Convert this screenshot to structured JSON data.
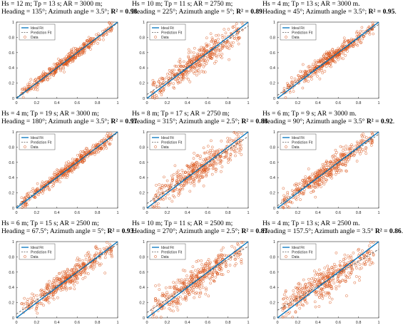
{
  "legend": {
    "ideal": "Ideal Fit",
    "prediction": "Prediction Fit",
    "data": "Data"
  },
  "colors": {
    "ideal": "#0072bd",
    "prediction": "#5a5a5a",
    "data": "#d95319"
  },
  "axis_ticks": {
    "x": [
      "0",
      "0.2",
      "0.4",
      "0.6",
      "0.8",
      "1"
    ],
    "y": [
      "0",
      "0.2",
      "0.4",
      "0.6",
      "0.8",
      "1"
    ]
  },
  "panels": [
    {
      "line1": "Hs = 12 m; Tp = 13 s; AR = 3000 m;",
      "line2": "Heading = 135°; Azimuth angle = 3.5°; ",
      "r2": "R² = 0.98",
      "end": "."
    },
    {
      "line1": "Hs = 10 m; Tp = 11 s; AR = 2750 m;",
      "line2": "Heading = 225°; Azimuth angle = 5°; ",
      "r2": "R² = 0.89",
      "end": "."
    },
    {
      "line1": "Hs = 4 m; Tp = 13 s; AR = 3000 m.",
      "line2": "Heading = 45°; Azimuth angle = 3.5°; ",
      "r2": "R² = 0.95",
      "end": "."
    },
    {
      "line1": "Hs = 4 m; Tp = 19 s; AR = 3000 m;",
      "line2": "Heading = 180°; Azimuth angle = 3.5°; ",
      "r2": "R² = 0.97",
      "end": "."
    },
    {
      "line1": "Hs = 8 m; Tp = 17 s; AR = 2750 m;",
      "line2": "Heading = 315°; Azimuth angle = 2.5°; ",
      "r2": "R² = 0.88",
      "end": "."
    },
    {
      "line1": "Hs = 6 m; Tp = 9 s; AR = 3000 m.",
      "line2": "Heading = 90°; Azimuth angle = 3.5° ",
      "r2": "R² = 0.92",
      "end": "."
    },
    {
      "line1": "Hs = 6 m; Tp = 15 s; AR = 2500 m;",
      "line2": "Heading = 67.5°; Azimuth angle = 5°; ",
      "r2": "R² = 0.93",
      "end": "."
    },
    {
      "line1": "Hs = 10 m; Tp = 11 s; AR = 2500 m;",
      "line2": "Heading = 270°; Azimuth angle = 2.5°; ",
      "r2": "R² = 0.87",
      "end": "."
    },
    {
      "line1": "Hs = 4 m; Tp = 13 s; AR = 2500 m.",
      "line2": "Heading = 157.5°; Azimuth angle = 3.5° ",
      "r2": "R² = 0.86",
      "end": "."
    }
  ],
  "chart_data": [
    {
      "type": "scatter",
      "xlim": [
        0,
        1
      ],
      "ylim": [
        0,
        1
      ],
      "grid": false,
      "legend_position": "top-left",
      "r2": 0.98,
      "prediction_fit": {
        "slope": 0.98,
        "intercept": 0.01
      },
      "ideal_fit": {
        "slope": 1,
        "intercept": 0
      }
    },
    {
      "type": "scatter",
      "xlim": [
        0,
        1
      ],
      "ylim": [
        0,
        1
      ],
      "grid": false,
      "legend_position": "top-left",
      "r2": 0.89,
      "prediction_fit": {
        "slope": 0.9,
        "intercept": 0.05
      },
      "ideal_fit": {
        "slope": 1,
        "intercept": 0
      }
    },
    {
      "type": "scatter",
      "xlim": [
        0,
        1
      ],
      "ylim": [
        0,
        1
      ],
      "grid": false,
      "legend_position": "top-left",
      "r2": 0.95,
      "prediction_fit": {
        "slope": 0.93,
        "intercept": 0.04
      },
      "ideal_fit": {
        "slope": 1,
        "intercept": 0
      }
    },
    {
      "type": "scatter",
      "xlim": [
        0,
        1
      ],
      "ylim": [
        0,
        1
      ],
      "grid": false,
      "legend_position": "top-left",
      "r2": 0.97,
      "prediction_fit": {
        "slope": 0.97,
        "intercept": 0.02
      },
      "ideal_fit": {
        "slope": 1,
        "intercept": 0
      }
    },
    {
      "type": "scatter",
      "xlim": [
        0,
        1
      ],
      "ylim": [
        0,
        1
      ],
      "grid": false,
      "legend_position": "top-left",
      "r2": 0.88,
      "prediction_fit": {
        "slope": 0.88,
        "intercept": 0.06
      },
      "ideal_fit": {
        "slope": 1,
        "intercept": 0
      }
    },
    {
      "type": "scatter",
      "xlim": [
        0,
        1
      ],
      "ylim": [
        0,
        1
      ],
      "grid": false,
      "legend_position": "top-left",
      "r2": 0.92,
      "prediction_fit": {
        "slope": 0.94,
        "intercept": 0.03
      },
      "ideal_fit": {
        "slope": 1,
        "intercept": 0
      }
    },
    {
      "type": "scatter",
      "xlim": [
        0,
        1
      ],
      "ylim": [
        0,
        1
      ],
      "grid": false,
      "legend_position": "top-left",
      "r2": 0.93,
      "prediction_fit": {
        "slope": 0.92,
        "intercept": 0.05
      },
      "ideal_fit": {
        "slope": 1,
        "intercept": 0
      }
    },
    {
      "type": "scatter",
      "xlim": [
        0,
        1
      ],
      "ylim": [
        0,
        1
      ],
      "grid": false,
      "legend_position": "top-left",
      "r2": 0.87,
      "prediction_fit": {
        "slope": 0.87,
        "intercept": 0.07
      },
      "ideal_fit": {
        "slope": 1,
        "intercept": 0
      }
    },
    {
      "type": "scatter",
      "xlim": [
        0,
        1
      ],
      "ylim": [
        0,
        1
      ],
      "grid": false,
      "legend_position": "top-left",
      "r2": 0.86,
      "prediction_fit": {
        "slope": 0.8,
        "intercept": 0.1
      },
      "ideal_fit": {
        "slope": 1,
        "intercept": 0
      }
    }
  ]
}
